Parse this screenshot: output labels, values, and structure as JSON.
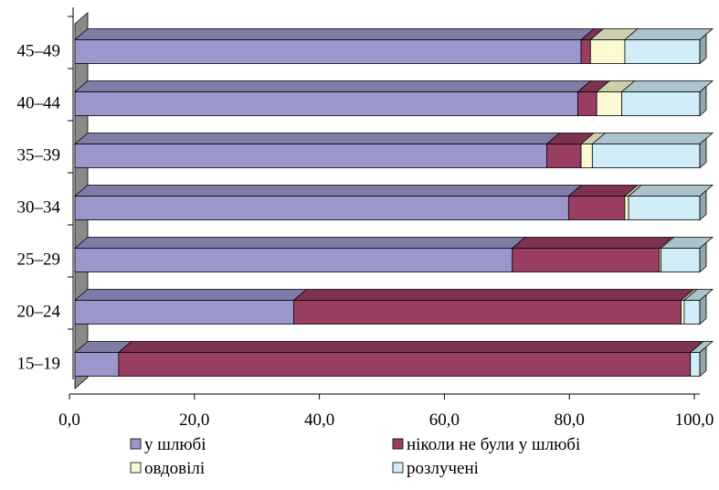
{
  "chart_data": {
    "type": "bar",
    "orientation": "horizontal",
    "stacked": true,
    "categories": [
      "15–19",
      "20–24",
      "25–29",
      "30–34",
      "35–39",
      "40–44",
      "45–49"
    ],
    "series": [
      {
        "name": "у шлюбі",
        "color": "#9b97cc",
        "values": [
          7.0,
          35.0,
          70.0,
          79.0,
          75.5,
          80.5,
          81.0
        ]
      },
      {
        "name": "ніколи не були у шлюбі",
        "color": "#9a3d63",
        "values": [
          91.5,
          62.0,
          23.5,
          9.0,
          5.5,
          3.0,
          1.5
        ]
      },
      {
        "name": "овдовілі",
        "color": "#fbfad2",
        "values": [
          0.0,
          0.5,
          0.3,
          0.6,
          1.8,
          4.0,
          5.5
        ]
      },
      {
        "name": "розлучені",
        "color": "#d1eef8",
        "values": [
          1.5,
          2.5,
          6.2,
          11.4,
          17.2,
          12.5,
          12.0
        ]
      }
    ],
    "xlim": [
      0,
      100
    ],
    "xticks": [
      "0,0",
      "20,0",
      "40,0",
      "60,0",
      "80,0",
      "100,0"
    ],
    "xtick_values": [
      0,
      20,
      40,
      60,
      80,
      100
    ],
    "grid": false,
    "legend_position": "bottom",
    "colors": {
      "wall": "#8a8a8a",
      "outline": "#000000"
    }
  }
}
